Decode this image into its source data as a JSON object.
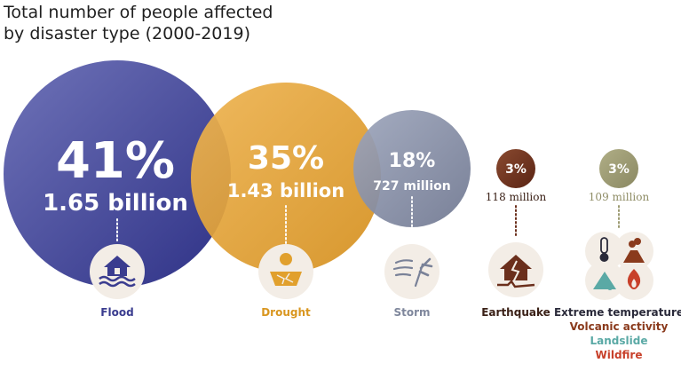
{
  "title": {
    "line1": "Total number of people affected",
    "line2": "by disaster type (2000-2019)"
  },
  "chart_data": {
    "type": "bubble",
    "categories": [
      "Flood",
      "Drought",
      "Storm",
      "Earthquake",
      "Extreme temperature / Volcanic activity / Landslide / Wildfire"
    ],
    "series": [
      {
        "category": "Flood",
        "percent_label": "41%",
        "amount_label": "1.65 billion",
        "value": 1.65,
        "color": "#3a3c8f",
        "icon": "flooded-house-icon"
      },
      {
        "category": "Drought",
        "percent_label": "35%",
        "amount_label": "1.43 billion",
        "value": 1.43,
        "color": "#e1a02d",
        "icon": "cracked-earth-sun-icon"
      },
      {
        "category": "Storm",
        "percent_label": "18%",
        "amount_label": "727 million",
        "value": 0.727,
        "color": "#848ca2",
        "icon": "storm-wind-icon"
      },
      {
        "category": "Earthquake",
        "percent_label": "3%",
        "amount_label": "118 million",
        "value": 0.118,
        "color": "#6b2f1c",
        "icon": "earthquake-house-icon"
      },
      {
        "category": "Other",
        "percent_label": "3%",
        "amount_label": "109 million",
        "value": 0.109,
        "color": "#9d9b72",
        "icon": "combined-hazards-icon"
      }
    ],
    "other_labels": [
      {
        "text": "Extreme temperature",
        "color": "#2a2a3a"
      },
      {
        "text": "Volcanic activity",
        "color": "#8a3a1c"
      },
      {
        "text": "Landslide",
        "color": "#5aa9a5"
      },
      {
        "text": "Wildfire",
        "color": "#c8402a"
      }
    ],
    "unit": "billion people"
  }
}
